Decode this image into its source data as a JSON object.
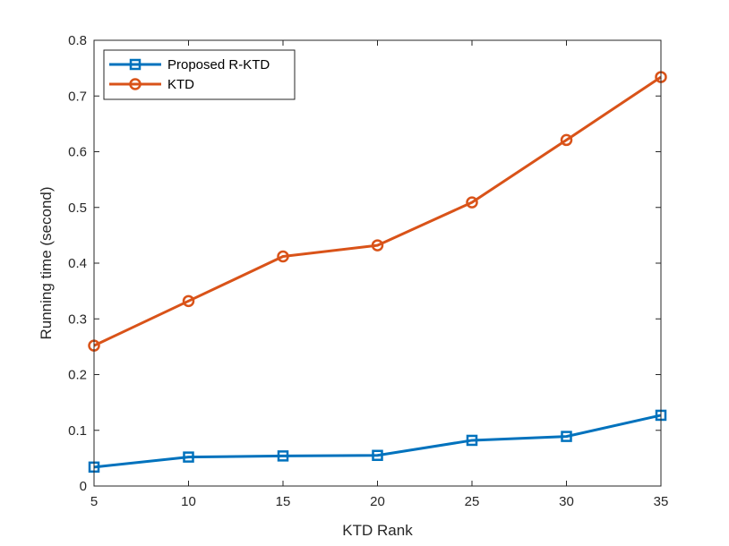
{
  "chart_data": {
    "type": "line",
    "title": "",
    "xlabel": "KTD Rank",
    "ylabel": "Running time (second)",
    "x": [
      5,
      10,
      15,
      20,
      25,
      30,
      35
    ],
    "xlim": [
      5,
      35
    ],
    "ylim": [
      0,
      0.8
    ],
    "xticks": [
      "5",
      "10",
      "15",
      "20",
      "25",
      "30",
      "35"
    ],
    "yticks": [
      "0",
      "0.1",
      "0.2",
      "0.3",
      "0.4",
      "0.5",
      "0.6",
      "0.7",
      "0.8"
    ],
    "grid": false,
    "legend_position": "top-left",
    "series": [
      {
        "name": "Proposed R-KTD",
        "color": "#0072BD",
        "marker": "square",
        "values": [
          0.034,
          0.052,
          0.054,
          0.055,
          0.082,
          0.089,
          0.127
        ]
      },
      {
        "name": "KTD",
        "color": "#D95319",
        "marker": "circle",
        "values": [
          0.252,
          0.332,
          0.412,
          0.432,
          0.509,
          0.621,
          0.734
        ]
      }
    ]
  }
}
